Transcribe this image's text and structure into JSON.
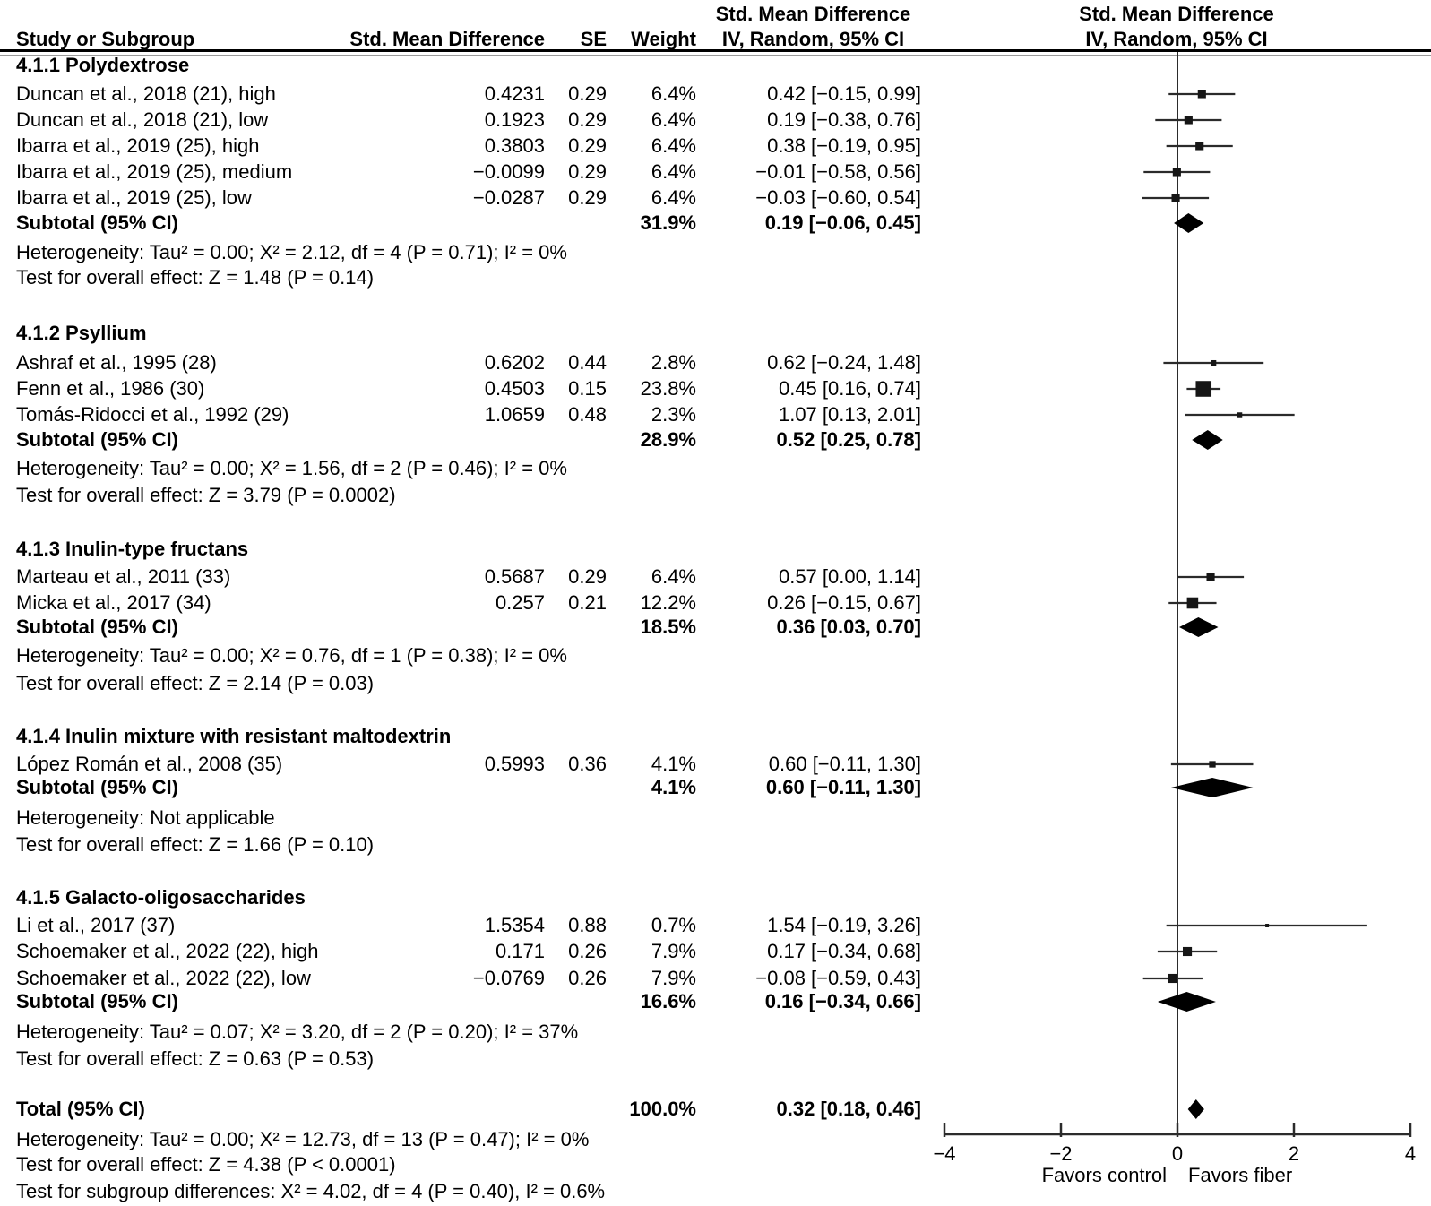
{
  "figure": {
    "columns": {
      "study": "Study or Subgroup",
      "smd": "Std. Mean Difference",
      "se": "SE",
      "weight": "Weight",
      "ci_line1": "Std. Mean Difference",
      "ci_line2": "IV, Random, 95% CI",
      "plot_line1": "Std. Mean Difference",
      "plot_line2": "IV, Random, 95% CI"
    }
  },
  "chart_data": {
    "type": "forest",
    "effect_measure": "Std. Mean Difference",
    "model": "IV, Random, 95% CI",
    "axis": {
      "xlim": [
        -4,
        4
      ],
      "ticks": [
        {
          "v": -4,
          "label": "−4"
        },
        {
          "v": -2,
          "label": "−2"
        },
        {
          "v": 0,
          "label": "0"
        },
        {
          "v": 2,
          "label": "2"
        },
        {
          "v": 4,
          "label": "4"
        }
      ],
      "favors_left": "Favors control",
      "favors_right": "Favors fiber"
    },
    "sections": [
      {
        "heading": "4.1.1 Polydextrose",
        "studies": [
          {
            "label": "Duncan et al., 2018 (21), high",
            "smd": "0.4231",
            "se": "0.29",
            "weight": "6.4%",
            "w": 6.4,
            "ci_text": "0.42 [−0.15, 0.99]",
            "est": 0.42,
            "lo": -0.15,
            "hi": 0.99
          },
          {
            "label": "Duncan et al., 2018 (21), low",
            "smd": "0.1923",
            "se": "0.29",
            "weight": "6.4%",
            "w": 6.4,
            "ci_text": "0.19 [−0.38, 0.76]",
            "est": 0.19,
            "lo": -0.38,
            "hi": 0.76
          },
          {
            "label": "Ibarra et al., 2019 (25), high",
            "smd": "0.3803",
            "se": "0.29",
            "weight": "6.4%",
            "w": 6.4,
            "ci_text": "0.38 [−0.19, 0.95]",
            "est": 0.38,
            "lo": -0.19,
            "hi": 0.95
          },
          {
            "label": "Ibarra et al., 2019 (25), medium",
            "smd": "−0.0099",
            "se": "0.29",
            "weight": "6.4%",
            "w": 6.4,
            "ci_text": "−0.01 [−0.58, 0.56]",
            "est": -0.01,
            "lo": -0.58,
            "hi": 0.56
          },
          {
            "label": "Ibarra et al., 2019 (25), low",
            "smd": "−0.0287",
            "se": "0.29",
            "weight": "6.4%",
            "w": 6.4,
            "ci_text": "−0.03 [−0.60, 0.54]",
            "est": -0.03,
            "lo": -0.6,
            "hi": 0.54
          }
        ],
        "subtotal": {
          "label": "Subtotal (95% CI)",
          "weight": "31.9%",
          "ci_text": "0.19 [−0.06, 0.45]",
          "est": 0.19,
          "lo": -0.06,
          "hi": 0.45
        },
        "heterogeneity": "Heterogeneity: Tau² = 0.00; Χ² = 2.12, df = 4 (P = 0.71); I² = 0%",
        "overall_test": "Test for overall effect: Z = 1.48 (P = 0.14)"
      },
      {
        "heading": "4.1.2 Psyllium",
        "studies": [
          {
            "label": "Ashraf et al., 1995 (28)",
            "smd": "0.6202",
            "se": "0.44",
            "weight": "2.8%",
            "w": 2.8,
            "ci_text": "0.62 [−0.24, 1.48]",
            "est": 0.62,
            "lo": -0.24,
            "hi": 1.48
          },
          {
            "label": "Fenn et al., 1986 (30)",
            "smd": "0.4503",
            "se": "0.15",
            "weight": "23.8%",
            "w": 23.8,
            "ci_text": "0.45 [0.16, 0.74]",
            "est": 0.45,
            "lo": 0.16,
            "hi": 0.74
          },
          {
            "label": "Tomás-Ridocci et al., 1992 (29)",
            "smd": "1.0659",
            "se": "0.48",
            "weight": "2.3%",
            "w": 2.3,
            "ci_text": "1.07 [0.13, 2.01]",
            "est": 1.07,
            "lo": 0.13,
            "hi": 2.01
          }
        ],
        "subtotal": {
          "label": "Subtotal (95% CI)",
          "weight": "28.9%",
          "ci_text": "0.52 [0.25, 0.78]",
          "est": 0.52,
          "lo": 0.25,
          "hi": 0.78
        },
        "heterogeneity": "Heterogeneity: Tau² = 0.00; Χ² = 1.56, df = 2 (P = 0.46); I² = 0%",
        "overall_test": "Test for overall effect: Z = 3.79 (P = 0.0002)"
      },
      {
        "heading": "4.1.3 Inulin-type fructans",
        "studies": [
          {
            "label": "Marteau et al., 2011 (33)",
            "smd": "0.5687",
            "se": "0.29",
            "weight": "6.4%",
            "w": 6.4,
            "ci_text": "0.57 [0.00, 1.14]",
            "est": 0.57,
            "lo": 0.0,
            "hi": 1.14
          },
          {
            "label": "Micka et al., 2017 (34)",
            "smd": "0.257",
            "se": "0.21",
            "weight": "12.2%",
            "w": 12.2,
            "ci_text": "0.26 [−0.15, 0.67]",
            "est": 0.26,
            "lo": -0.15,
            "hi": 0.67
          }
        ],
        "subtotal": {
          "label": "Subtotal (95% CI)",
          "weight": "18.5%",
          "ci_text": "0.36 [0.03, 0.70]",
          "est": 0.36,
          "lo": 0.03,
          "hi": 0.7
        },
        "heterogeneity": "Heterogeneity: Tau² = 0.00; Χ² = 0.76, df = 1 (P = 0.38); I² = 0%",
        "overall_test": "Test for overall effect: Z = 2.14 (P = 0.03)"
      },
      {
        "heading": "4.1.4 Inulin mixture with resistant maltodextrin",
        "studies": [
          {
            "label": "López Román et al., 2008 (35)",
            "smd": "0.5993",
            "se": "0.36",
            "weight": "4.1%",
            "w": 4.1,
            "ci_text": "0.60 [−0.11, 1.30]",
            "est": 0.6,
            "lo": -0.11,
            "hi": 1.3
          }
        ],
        "subtotal": {
          "label": "Subtotal (95% CI)",
          "weight": "4.1%",
          "ci_text": "0.60 [−0.11, 1.30]",
          "est": 0.6,
          "lo": -0.11,
          "hi": 1.3
        },
        "heterogeneity": "Heterogeneity: Not applicable",
        "overall_test": "Test for overall effect: Z = 1.66 (P = 0.10)"
      },
      {
        "heading": "4.1.5 Galacto-oligosaccharides",
        "studies": [
          {
            "label": "Li et al., 2017 (37)",
            "smd": "1.5354",
            "se": "0.88",
            "weight": "0.7%",
            "w": 0.7,
            "ci_text": "1.54 [−0.19, 3.26]",
            "est": 1.54,
            "lo": -0.19,
            "hi": 3.26
          },
          {
            "label": "Schoemaker et al., 2022 (22), high",
            "smd": "0.171",
            "se": "0.26",
            "weight": "7.9%",
            "w": 7.9,
            "ci_text": "0.17 [−0.34, 0.68]",
            "est": 0.17,
            "lo": -0.34,
            "hi": 0.68
          },
          {
            "label": "Schoemaker et al., 2022 (22), low",
            "smd": "−0.0769",
            "se": "0.26",
            "weight": "7.9%",
            "w": 7.9,
            "ci_text": "−0.08 [−0.59, 0.43]",
            "est": -0.08,
            "lo": -0.59,
            "hi": 0.43
          }
        ],
        "subtotal": {
          "label": "Subtotal (95% CI)",
          "weight": "16.6%",
          "ci_text": "0.16 [−0.34, 0.66]",
          "est": 0.16,
          "lo": -0.34,
          "hi": 0.66
        },
        "heterogeneity": "Heterogeneity: Tau² = 0.07; Χ² = 3.20, df = 2 (P = 0.20); I² = 37%",
        "overall_test": "Test for overall effect: Z = 0.63 (P = 0.53)"
      }
    ],
    "total": {
      "label": "Total (95% CI)",
      "weight": "100.0%",
      "ci_text": "0.32 [0.18, 0.46]",
      "est": 0.32,
      "lo": 0.18,
      "hi": 0.46,
      "heterogeneity": "Heterogeneity: Tau² = 0.00; Χ² = 12.73, df = 13 (P = 0.47); I² = 0%",
      "overall_test": "Test for overall effect: Z = 4.38 (P < 0.0001)",
      "subgroup_test": "Test for subgroup differences: Χ² = 4.02, df = 4 (P = 0.40), I² = 0.6%"
    },
    "colors": {
      "text": "#000000",
      "lines": "#2b2b2b",
      "marker": "#161616"
    }
  }
}
